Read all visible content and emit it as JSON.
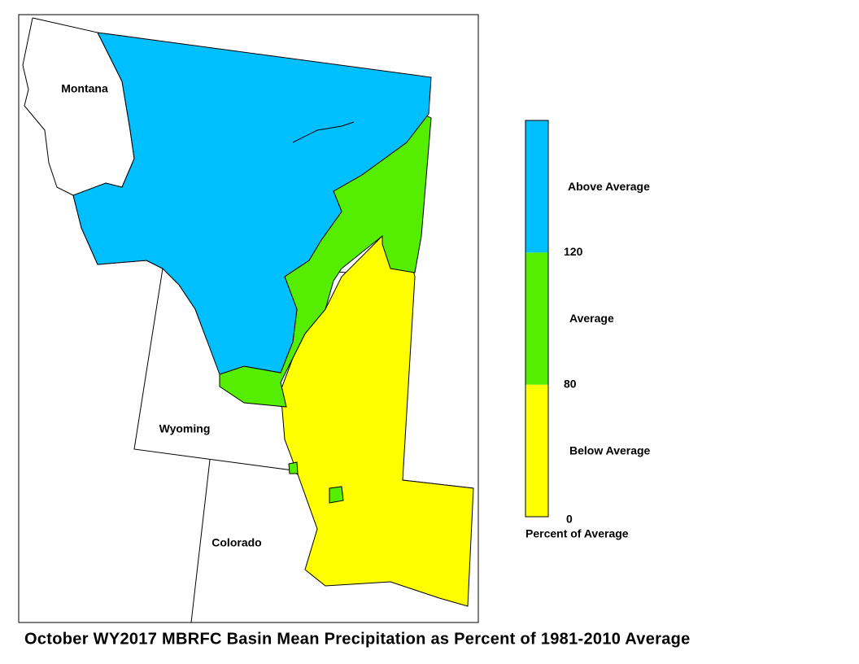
{
  "map": {
    "labels": [
      "Montana",
      "Wyoming",
      "Colorado"
    ],
    "legend": {
      "title": "Percent of Average",
      "classes": [
        {
          "label": "Below Average",
          "color": "#ffff00"
        },
        {
          "label": "Average",
          "color": "#55ee00"
        },
        {
          "label": "Above Average",
          "color": "#00bfff"
        }
      ],
      "ticks": [
        0,
        80,
        120
      ]
    }
  },
  "caption": "October WY2017 MBRFC Basin Mean Precipitation as Percent of 1981-2010 Average"
}
